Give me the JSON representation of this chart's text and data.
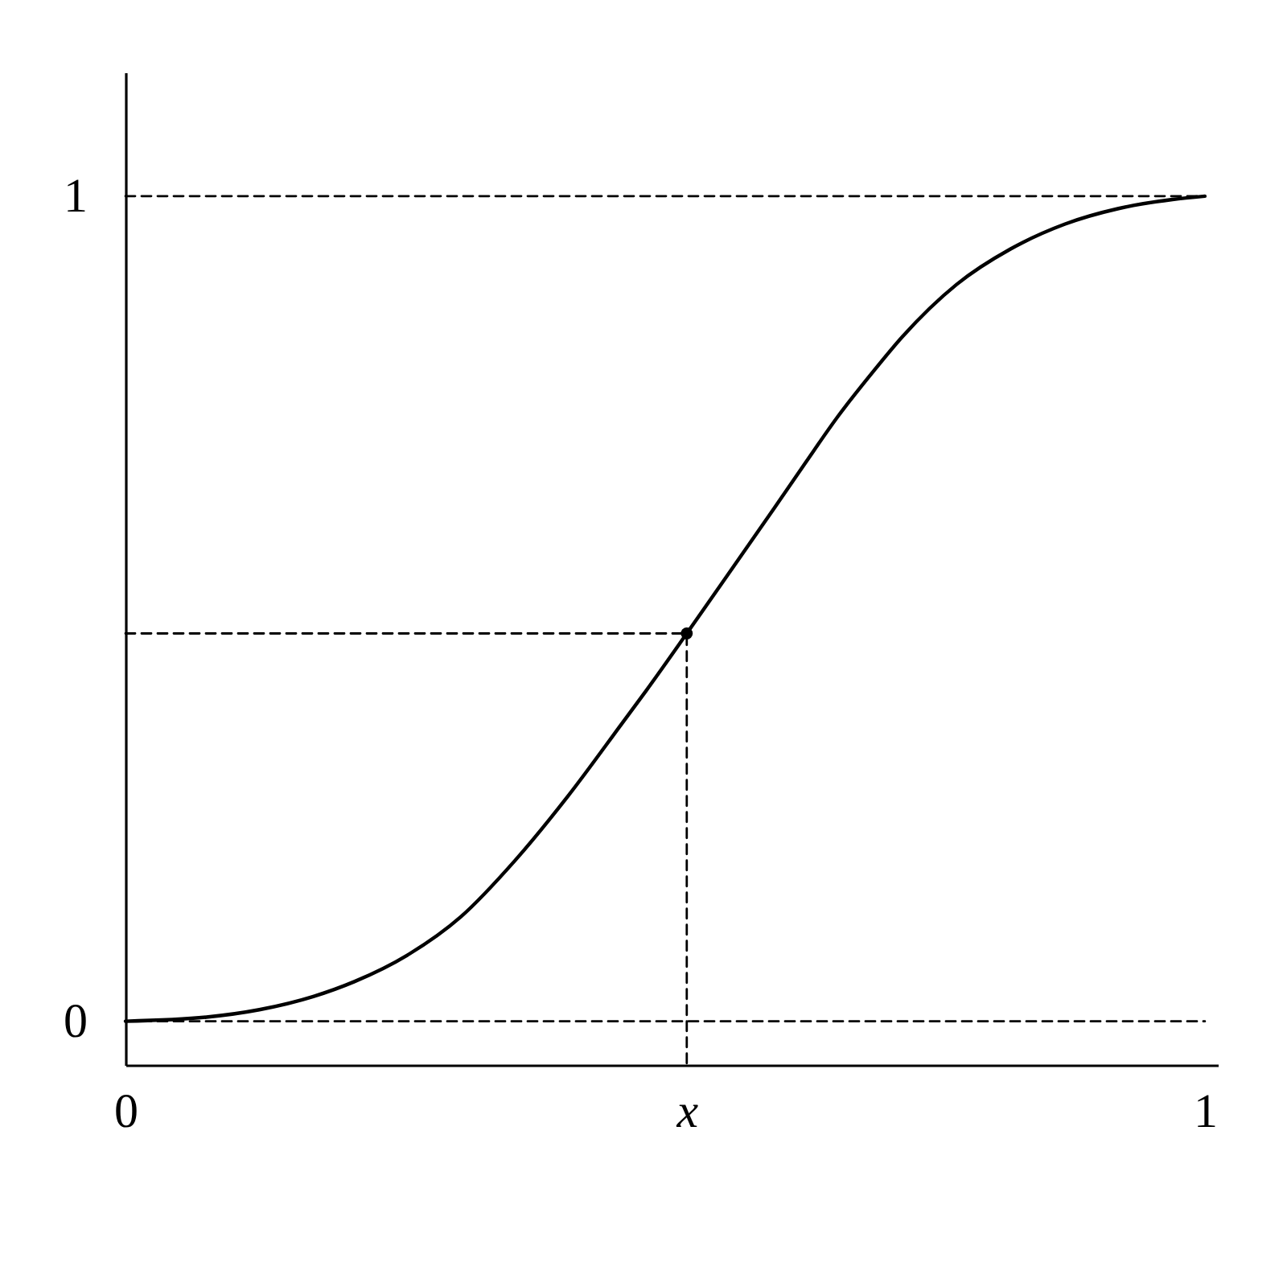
{
  "chart_data": {
    "type": "line",
    "xlim": [
      0,
      1.012
    ],
    "ylim": [
      -0.053,
      1.15
    ],
    "xticks": [
      0,
      {
        "value": 0.52,
        "label": "x"
      },
      1
    ],
    "yticks": [
      0,
      1
    ],
    "series": [
      {
        "color": "#000000",
        "line_style": "dashed",
        "x": [
          0,
          1
        ],
        "values": [
          0,
          0
        ]
      },
      {
        "color": "#000000",
        "line_style": "dashed",
        "x": [
          0,
          1
        ],
        "values": [
          1,
          1
        ]
      },
      {
        "color": "#000000",
        "line_style": "dashed",
        "x": [
          0,
          0.52,
          0.52
        ],
        "values": [
          0.47,
          0.47,
          -0.053
        ]
      },
      {
        "color": "#000000",
        "x": [
          0,
          0.075,
          0.124,
          0.174,
          0.212,
          0.261,
          0.311,
          0.361,
          0.41,
          0.46,
          0.482,
          0.52,
          0.55,
          0.6,
          0.63,
          0.66,
          0.69,
          0.72,
          0.77,
          0.82,
          0.87,
          0.92,
          0.97,
          1.0
        ],
        "values": [
          0,
          0.005,
          0.014,
          0.03,
          0.048,
          0.08,
          0.127,
          0.195,
          0.273,
          0.361,
          0.4,
          0.47,
          0.526,
          0.62,
          0.677,
          0.733,
          0.783,
          0.83,
          0.893,
          0.936,
          0.966,
          0.985,
          0.996,
          1.0
        ]
      },
      {
        "type": "scatter",
        "color": "#000000",
        "marker": "circle",
        "x": [
          0.52
        ],
        "values": [
          0.47
        ]
      }
    ]
  }
}
